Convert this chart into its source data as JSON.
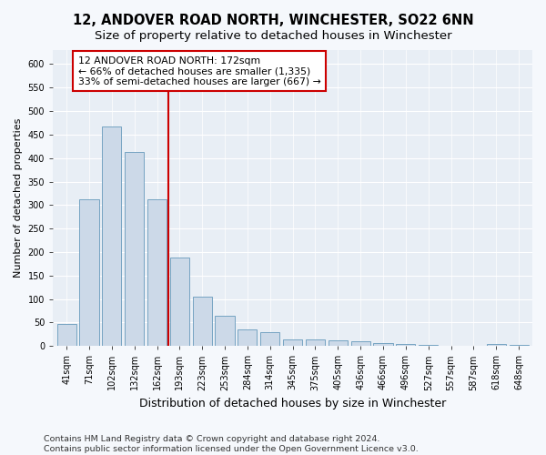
{
  "title": "12, ANDOVER ROAD NORTH, WINCHESTER, SO22 6NN",
  "subtitle": "Size of property relative to detached houses in Winchester",
  "xlabel": "Distribution of detached houses by size in Winchester",
  "ylabel": "Number of detached properties",
  "categories": [
    "41sqm",
    "71sqm",
    "102sqm",
    "132sqm",
    "162sqm",
    "193sqm",
    "223sqm",
    "253sqm",
    "284sqm",
    "314sqm",
    "345sqm",
    "375sqm",
    "405sqm",
    "436sqm",
    "466sqm",
    "496sqm",
    "527sqm",
    "557sqm",
    "587sqm",
    "618sqm",
    "648sqm"
  ],
  "values": [
    46,
    312,
    468,
    413,
    312,
    188,
    104,
    65,
    36,
    29,
    14,
    13,
    12,
    10,
    7,
    4,
    3,
    1,
    0,
    4,
    3
  ],
  "bar_color": "#ccd9e8",
  "bar_edge_color": "#6699bb",
  "vline_color": "#cc0000",
  "vline_pos": 4.5,
  "annotation_text": "12 ANDOVER ROAD NORTH: 172sqm\n← 66% of detached houses are smaller (1,335)\n33% of semi-detached houses are larger (667) →",
  "annotation_box_facecolor": "#ffffff",
  "annotation_box_edgecolor": "#cc0000",
  "ylim": [
    0,
    630
  ],
  "yticks": [
    0,
    50,
    100,
    150,
    200,
    250,
    300,
    350,
    400,
    450,
    500,
    550,
    600
  ],
  "background_color": "#f5f8fc",
  "plot_bg_color": "#e8eef5",
  "title_fontsize": 10.5,
  "subtitle_fontsize": 9.5,
  "xlabel_fontsize": 9,
  "ylabel_fontsize": 8,
  "tick_fontsize": 7,
  "annotation_fontsize": 7.8,
  "footer_fontsize": 6.8,
  "footer_line1": "Contains HM Land Registry data © Crown copyright and database right 2024.",
  "footer_line2": "Contains public sector information licensed under the Open Government Licence v3.0."
}
